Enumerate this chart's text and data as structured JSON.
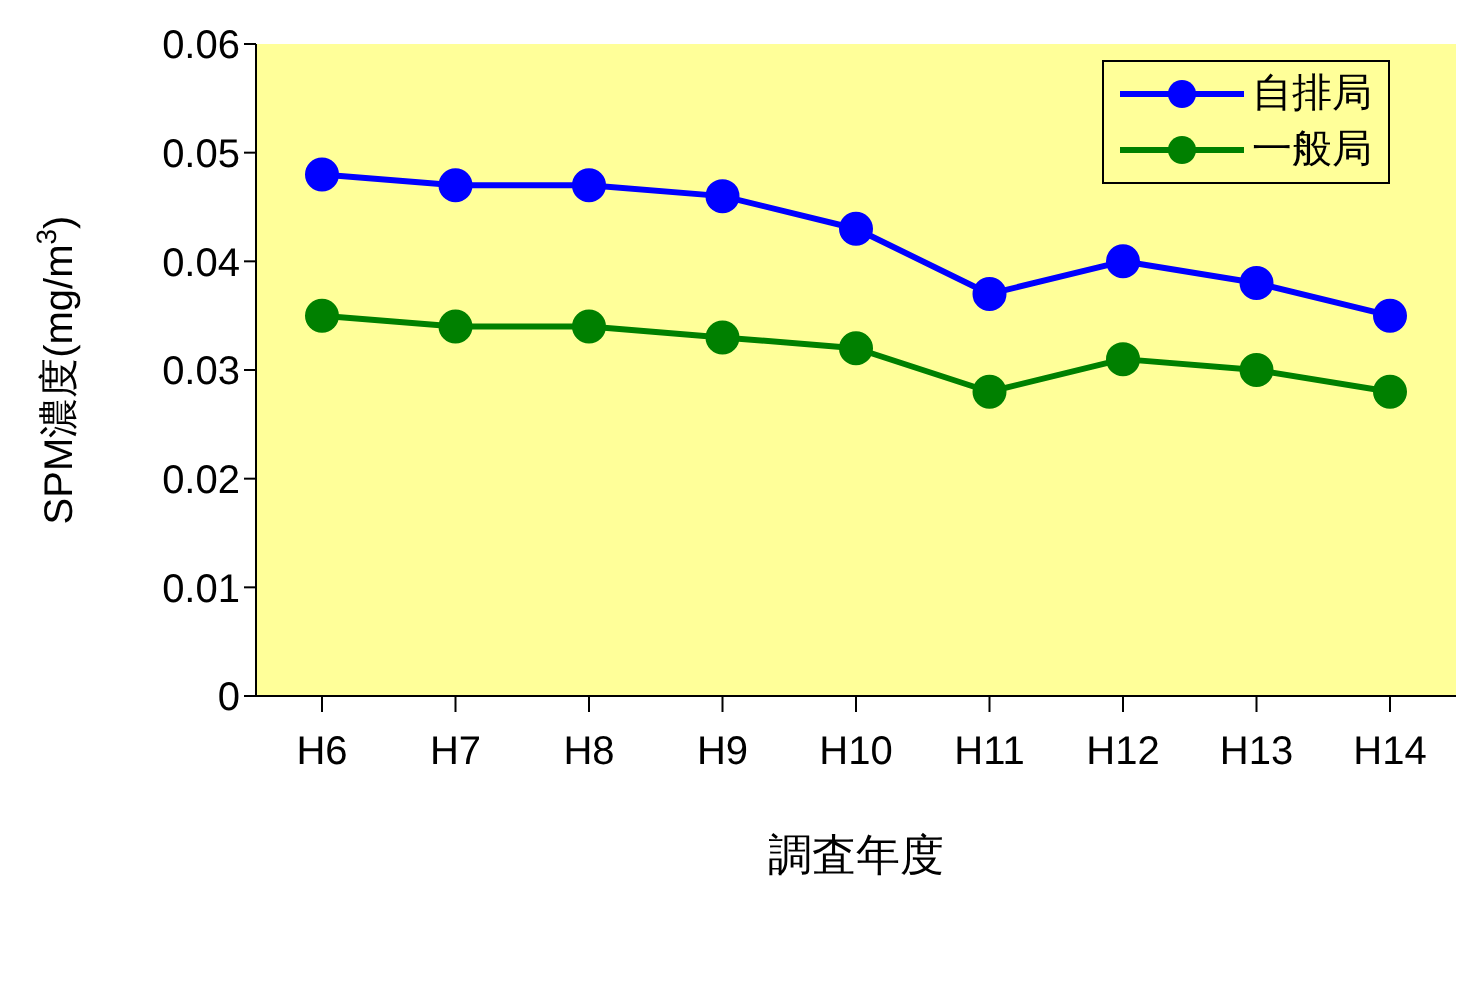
{
  "chart_data": {
    "type": "line",
    "xlabel": "調査年度",
    "ylabel": "SPM濃度(mg/m$^{3}$)",
    "categories": [
      "H6",
      "H7",
      "H8",
      "H9",
      "H10",
      "H11",
      "H12",
      "H13",
      "H14"
    ],
    "series": [
      {
        "name": "自排局",
        "color": "#0000ff",
        "values": [
          0.048,
          0.047,
          0.047,
          0.046,
          0.043,
          0.037,
          0.04,
          0.038,
          0.035
        ]
      },
      {
        "name": "一般局",
        "color": "#008000",
        "values": [
          0.035,
          0.034,
          0.034,
          0.033,
          0.032,
          0.028,
          0.031,
          0.03,
          0.028
        ]
      }
    ],
    "ylim": [
      0,
      0.06
    ],
    "yticks": [
      0,
      0.01,
      0.02,
      0.03,
      0.04,
      0.05,
      0.06
    ],
    "grid": false,
    "legend": "top right",
    "marker": "circle",
    "line_style": "solid"
  }
}
